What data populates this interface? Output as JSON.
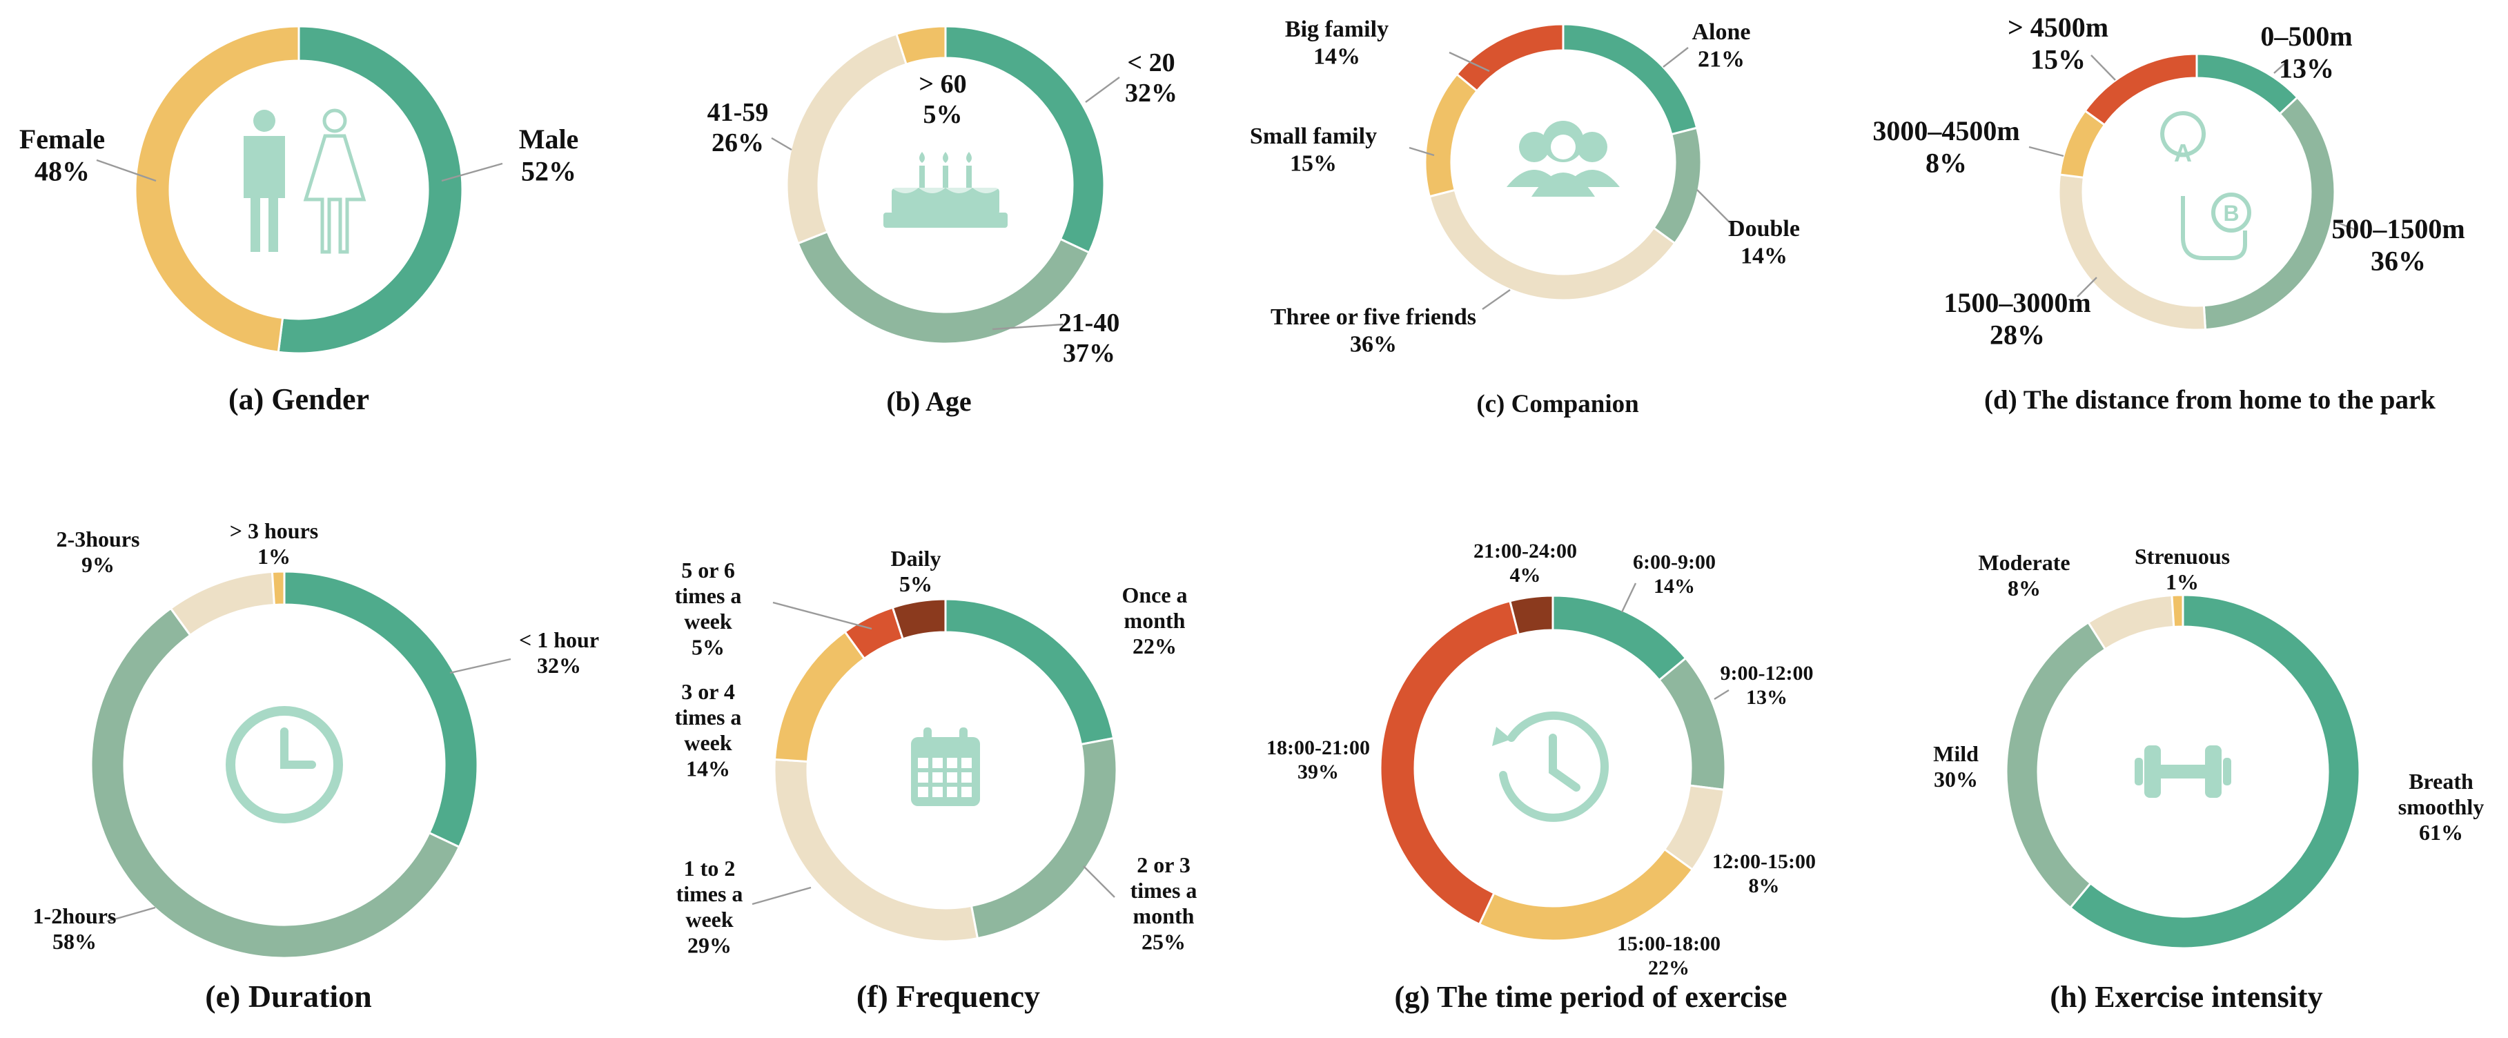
{
  "colors": {
    "teal": "#4fab8c",
    "sage": "#8fb79e",
    "beige": "#ede0c6",
    "yellow": "#f0c166",
    "red": "#d9542f",
    "brown": "#8b3a1e",
    "icon": "#a8d9c6"
  },
  "chart_data": [
    {
      "type": "pie",
      "title": "(a) Gender",
      "icon": "person-icon",
      "slices": [
        {
          "label": "Male",
          "value": 52,
          "color": "teal"
        },
        {
          "label": "Female",
          "value": 48,
          "color": "yellow"
        }
      ]
    },
    {
      "type": "pie",
      "title": "(b) Age",
      "icon": "birthday-cake-icon",
      "slices": [
        {
          "label": "< 20",
          "value": 32,
          "color": "teal"
        },
        {
          "label": "21-40",
          "value": 37,
          "color": "sage"
        },
        {
          "label": "41-59",
          "value": 26,
          "color": "beige"
        },
        {
          "label": "> 60",
          "value": 5,
          "color": "yellow"
        }
      ]
    },
    {
      "type": "pie",
      "title": "(c) Companion",
      "icon": "people-icon",
      "slices": [
        {
          "label": "Alone",
          "value": 21,
          "color": "teal"
        },
        {
          "label": "Double",
          "value": 14,
          "color": "sage"
        },
        {
          "label": "Three or five friends",
          "value": 36,
          "color": "beige"
        },
        {
          "label": "Small family",
          "value": 15,
          "color": "yellow"
        },
        {
          "label": "Big family",
          "value": 14,
          "color": "red"
        }
      ]
    },
    {
      "type": "pie",
      "title": "(d) The distance from home to the park",
      "icon": "route-icon",
      "slices": [
        {
          "label": "0–500m",
          "value": 13,
          "color": "teal"
        },
        {
          "label": "500–1500m",
          "value": 36,
          "color": "sage"
        },
        {
          "label": "1500–3000m",
          "value": 28,
          "color": "beige"
        },
        {
          "label": "3000–4500m",
          "value": 8,
          "color": "yellow"
        },
        {
          "label": "> 4500m",
          "value": 15,
          "color": "red"
        }
      ]
    },
    {
      "type": "pie",
      "title": "(e) Duration",
      "icon": "clock-icon",
      "slices": [
        {
          "label": "< 1 hour",
          "value": 32,
          "color": "teal"
        },
        {
          "label": "1-2hours",
          "value": 58,
          "color": "sage"
        },
        {
          "label": "2-3hours",
          "value": 9,
          "color": "beige"
        },
        {
          "label": "> 3 hours",
          "value": 1,
          "color": "yellow"
        }
      ]
    },
    {
      "type": "pie",
      "title": "(f) Frequency",
      "icon": "calendar-icon",
      "slices": [
        {
          "label": "Once a month",
          "value": 22,
          "color": "teal"
        },
        {
          "label": "2 or 3 times a month",
          "value": 25,
          "color": "sage"
        },
        {
          "label": "1 to 2 times a week",
          "value": 29,
          "color": "beige"
        },
        {
          "label": "3 or 4 times a week",
          "value": 14,
          "color": "yellow"
        },
        {
          "label": "5 or 6 times a week",
          "value": 5,
          "color": "red"
        },
        {
          "label": "Daily",
          "value": 5,
          "color": "brown"
        }
      ]
    },
    {
      "type": "pie",
      "title": "(g) The time period of exercise",
      "icon": "history-clock-icon",
      "slices": [
        {
          "label": "6:00-9:00",
          "value": 14,
          "color": "teal"
        },
        {
          "label": "9:00-12:00",
          "value": 13,
          "color": "sage"
        },
        {
          "label": "12:00-15:00",
          "value": 8,
          "color": "beige"
        },
        {
          "label": "15:00-18:00",
          "value": 22,
          "color": "yellow"
        },
        {
          "label": "18:00-21:00",
          "value": 39,
          "color": "red"
        },
        {
          "label": "21:00-24:00",
          "value": 4,
          "color": "brown"
        }
      ]
    },
    {
      "type": "pie",
      "title": "(h) Exercise intensity",
      "icon": "dumbbell-icon",
      "slices": [
        {
          "label": "Breath smoothly",
          "value": 61,
          "color": "teal"
        },
        {
          "label": "Mild",
          "value": 30,
          "color": "sage"
        },
        {
          "label": "Moderate",
          "value": 8,
          "color": "beige"
        },
        {
          "label": "Strenuous",
          "value": 1,
          "color": "yellow"
        }
      ]
    }
  ]
}
